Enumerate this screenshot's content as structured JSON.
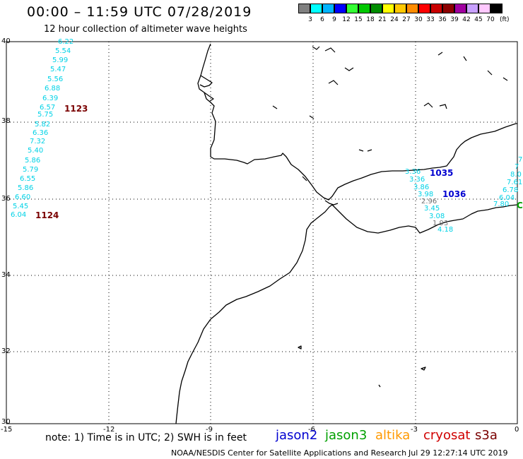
{
  "title": "00:00 – 11:59 UTC 07/28/2019",
  "subtitle": "12 hour collection of altimeter wave heights",
  "colorbar": {
    "colors": [
      "#808080",
      "#00ffff",
      "#00b4ff",
      "#0000ff",
      "#33ff33",
      "#00c800",
      "#008c00",
      "#ffff00",
      "#ffc800",
      "#ff8c00",
      "#ff0000",
      "#c80000",
      "#8c0000",
      "#a000a0",
      "#c8a0ff",
      "#ffc8ff",
      "#000000"
    ],
    "labels": [
      "3",
      "6",
      "9",
      "12",
      "15",
      "18",
      "21",
      "24",
      "27",
      "30",
      "33",
      "36",
      "39",
      "42",
      "45",
      "70"
    ],
    "unit": "(ft)"
  },
  "axes": {
    "y_ticks": [
      "40",
      "38",
      "36",
      "34",
      "32",
      "30"
    ],
    "x_ticks": [
      "-15",
      "-12",
      "-9",
      "-6",
      "-3",
      "0"
    ]
  },
  "note": "note: 1) Time is in UTC; 2) SWH is in feet",
  "satellites": [
    {
      "name": "jason2",
      "color": "#0000d0"
    },
    {
      "name": "jason3",
      "color": "#00a000"
    },
    {
      "name": "altika",
      "color": "#ff9900"
    },
    {
      "name": "cryosat",
      "color": "#d00000"
    },
    {
      "name": "s3a",
      "color": "#7a0000"
    }
  ],
  "credit": "NOAA/NESDIS Center for Satellite Applications and Research",
  "timestamp": "Jul 29 12:27:14 UTC 2019",
  "west_track": [
    "6.22",
    "5.54",
    "5.99",
    "5.47",
    "5.56",
    "6.88",
    "6.39",
    "6.57",
    "5.75",
    "5.82",
    "6.36",
    "7.32",
    "5.40",
    "5.86",
    "5.79",
    "6.55",
    "5.86",
    "6.60",
    "5.45",
    "6.04"
  ],
  "east_track": [
    "3.36",
    "3.86",
    "3.98",
    "3.45",
    "3.08",
    "4.18"
  ],
  "east_track_gray": [
    "2.96",
    "1.93"
  ],
  "right_track": [
    "8.0",
    "7.61",
    "6.78",
    "6.04"
  ],
  "partial_left": "3.36",
  "partial_right_top": "7",
  "partial_right_mid": "7",
  "partial_right_bottom": "7.80",
  "passes": {
    "p1123": "1123",
    "p1124": "1124",
    "p1035": "1035",
    "p1036": "1036",
    "p_green": "C"
  }
}
